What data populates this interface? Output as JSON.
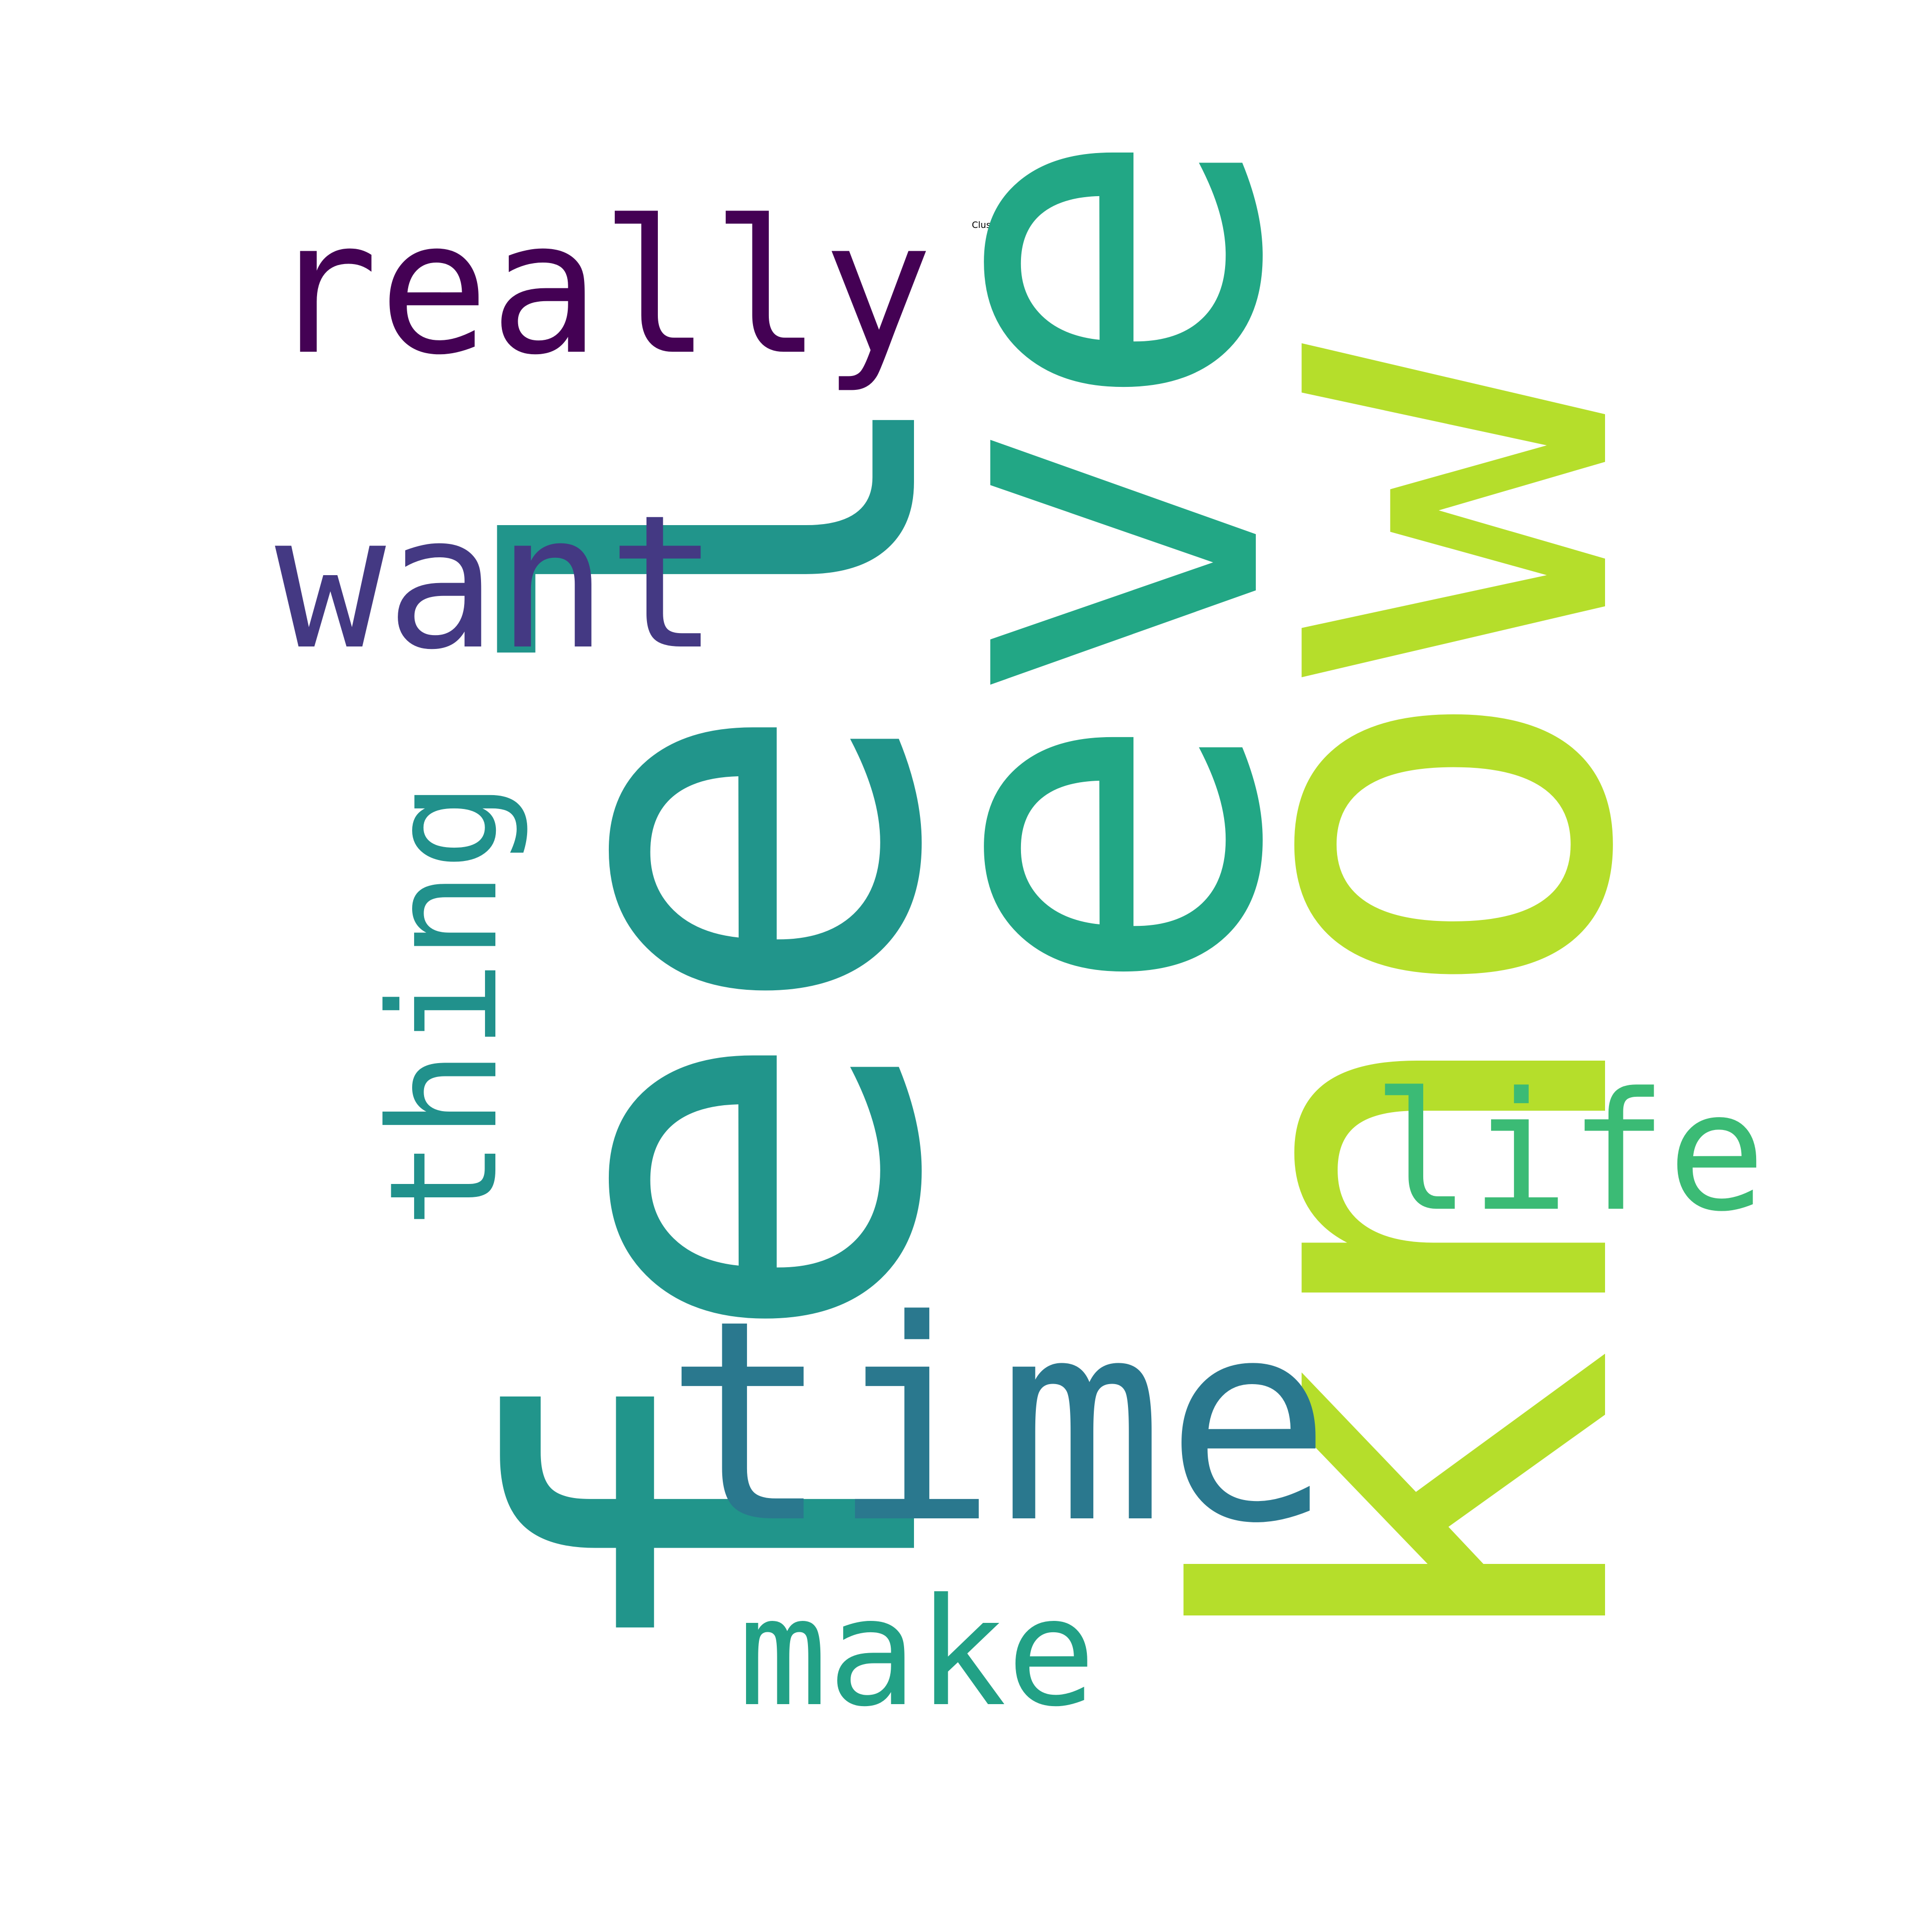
{
  "title": "Cluster 13",
  "words": [
    {
      "text": "feel",
      "color": "#21958b",
      "orientation": "vertical-up"
    },
    {
      "text": "know",
      "color": "#b5de2b",
      "orientation": "vertical-up"
    },
    {
      "text": "eve",
      "color": "#22a785",
      "orientation": "vertical-up"
    },
    {
      "text": "really",
      "color": "#440154",
      "orientation": "horizontal"
    },
    {
      "text": "want",
      "color": "#443983",
      "orientation": "horizontal"
    },
    {
      "text": "thing",
      "color": "#21918c",
      "orientation": "vertical-up"
    },
    {
      "text": "time",
      "color": "#2a788e",
      "orientation": "horizontal"
    },
    {
      "text": "life",
      "color": "#3bbb75",
      "orientation": "horizontal"
    },
    {
      "text": "make",
      "color": "#22a186",
      "orientation": "horizontal"
    }
  ]
}
